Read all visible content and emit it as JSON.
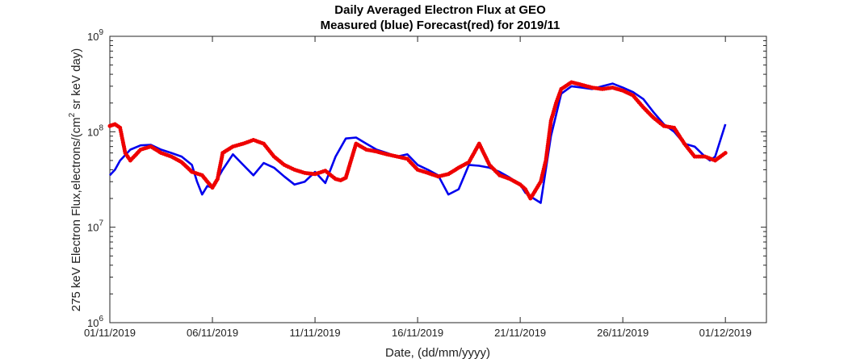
{
  "chart_data": {
    "type": "line",
    "title": "Daily Averaged Electron Flux at GEO",
    "subtitle": "Measured (blue) Forecast(red) for 2019/11",
    "xlabel": "Date, (dd/mm/yyyy)",
    "ylabel": {
      "main": "275 keV Electron Flux,electrons/(cm",
      "sup": "2",
      "rest": " sr keV day)"
    },
    "ylog": true,
    "ylim_exponents": [
      6,
      9
    ],
    "ytick_labels": [
      {
        "base": "10",
        "exp": "6"
      },
      {
        "base": "10",
        "exp": "7"
      },
      {
        "base": "10",
        "exp": "8"
      },
      {
        "base": "10",
        "exp": "9"
      }
    ],
    "xlim": [
      "2019-11-01",
      "2019-12-03"
    ],
    "xticks": [
      "2019-11-01",
      "2019-11-06",
      "2019-11-11",
      "2019-11-16",
      "2019-11-21",
      "2019-11-26",
      "2019-12-01"
    ],
    "xtick_labels": [
      "01/11/2019",
      "06/11/2019",
      "11/11/2019",
      "16/11/2019",
      "21/11/2019",
      "26/11/2019",
      "01/12/2019"
    ],
    "series": [
      {
        "name": "Measured",
        "color": "#0000ee",
        "style": "line",
        "x": [
          "2019-11-01T00:00",
          "2019-11-01T06:00",
          "2019-11-01T12:00",
          "2019-11-02T00:00",
          "2019-11-02T12:00",
          "2019-11-03T00:00",
          "2019-11-03T12:00",
          "2019-11-04T00:00",
          "2019-11-04T12:00",
          "2019-11-05T00:00",
          "2019-11-05T06:00",
          "2019-11-05T12:00",
          "2019-11-05T18:00",
          "2019-11-06T00:00",
          "2019-11-06T12:00",
          "2019-11-07T00:00",
          "2019-11-07T12:00",
          "2019-11-08T00:00",
          "2019-11-08T12:00",
          "2019-11-09T00:00",
          "2019-11-09T12:00",
          "2019-11-10T00:00",
          "2019-11-10T12:00",
          "2019-11-11T00:00",
          "2019-11-11T12:00",
          "2019-11-12T00:00",
          "2019-11-12T12:00",
          "2019-11-13T00:00",
          "2019-11-13T12:00",
          "2019-11-14T00:00",
          "2019-11-14T12:00",
          "2019-11-15T00:00",
          "2019-11-15T12:00",
          "2019-11-16T00:00",
          "2019-11-16T12:00",
          "2019-11-17T00:00",
          "2019-11-17T12:00",
          "2019-11-18T00:00",
          "2019-11-18T12:00",
          "2019-11-19T00:00",
          "2019-11-19T12:00",
          "2019-11-20T00:00",
          "2019-11-20T12:00",
          "2019-11-21T00:00",
          "2019-11-21T06:00",
          "2019-11-21T12:00",
          "2019-11-22T00:00",
          "2019-11-22T12:00",
          "2019-11-23T00:00",
          "2019-11-23T12:00",
          "2019-11-24T00:00",
          "2019-11-24T12:00",
          "2019-11-25T00:00",
          "2019-11-25T12:00",
          "2019-11-26T00:00",
          "2019-11-26T12:00",
          "2019-11-27T00:00",
          "2019-11-27T12:00",
          "2019-11-28T00:00",
          "2019-11-28T12:00",
          "2019-11-29T00:00",
          "2019-11-29T12:00",
          "2019-11-30T00:00",
          "2019-11-30T06:00",
          "2019-11-30T12:00",
          "2019-12-01T00:00"
        ],
        "y": [
          35000000.0,
          40000000.0,
          50000000.0,
          65000000.0,
          72000000.0,
          73000000.0,
          65000000.0,
          60000000.0,
          55000000.0,
          45000000.0,
          30000000.0,
          22000000.0,
          27000000.0,
          26000000.0,
          40000000.0,
          58000000.0,
          45000000.0,
          35000000.0,
          47000000.0,
          42000000.0,
          34000000.0,
          28000000.0,
          30000000.0,
          38000000.0,
          29000000.0,
          55000000.0,
          85000000.0,
          87000000.0,
          75000000.0,
          65000000.0,
          60000000.0,
          55000000.0,
          58000000.0,
          45000000.0,
          40000000.0,
          35000000.0,
          22000000.0,
          25000000.0,
          45000000.0,
          44000000.0,
          42000000.0,
          38000000.0,
          33000000.0,
          28000000.0,
          23000000.0,
          21000000.0,
          18000000.0,
          90000000.0,
          250000000.0,
          300000000.0,
          290000000.0,
          280000000.0,
          300000000.0,
          320000000.0,
          290000000.0,
          260000000.0,
          220000000.0,
          160000000.0,
          120000000.0,
          100000000.0,
          75000000.0,
          70000000.0,
          55000000.0,
          50000000.0,
          55000000.0,
          120000000.0
        ]
      },
      {
        "name": "Forecast",
        "color": "#ee0000",
        "style": "dots",
        "x": [
          "2019-11-01T00:00",
          "2019-11-01T06:00",
          "2019-11-01T12:00",
          "2019-11-01T18:00",
          "2019-11-02T00:00",
          "2019-11-02T12:00",
          "2019-11-03T00:00",
          "2019-11-03T12:00",
          "2019-11-04T00:00",
          "2019-11-04T12:00",
          "2019-11-05T00:00",
          "2019-11-05T12:00",
          "2019-11-05T18:00",
          "2019-11-06T00:00",
          "2019-11-06T06:00",
          "2019-11-06T12:00",
          "2019-11-07T00:00",
          "2019-11-07T12:00",
          "2019-11-08T00:00",
          "2019-11-08T12:00",
          "2019-11-09T00:00",
          "2019-11-09T12:00",
          "2019-11-10T00:00",
          "2019-11-10T12:00",
          "2019-11-11T00:00",
          "2019-11-11T12:00",
          "2019-11-12T00:00",
          "2019-11-12T06:00",
          "2019-11-12T12:00",
          "2019-11-13T00:00",
          "2019-11-13T12:00",
          "2019-11-14T00:00",
          "2019-11-14T12:00",
          "2019-11-15T00:00",
          "2019-11-15T12:00",
          "2019-11-16T00:00",
          "2019-11-16T12:00",
          "2019-11-17T00:00",
          "2019-11-17T12:00",
          "2019-11-18T00:00",
          "2019-11-18T12:00",
          "2019-11-19T00:00",
          "2019-11-19T12:00",
          "2019-11-20T00:00",
          "2019-11-20T12:00",
          "2019-11-21T00:00",
          "2019-11-21T06:00",
          "2019-11-21T12:00",
          "2019-11-22T00:00",
          "2019-11-22T06:00",
          "2019-11-22T12:00",
          "2019-11-22T18:00",
          "2019-11-23T00:00",
          "2019-11-23T12:00",
          "2019-11-24T00:00",
          "2019-11-24T12:00",
          "2019-11-25T00:00",
          "2019-11-25T12:00",
          "2019-11-26T00:00",
          "2019-11-26T12:00",
          "2019-11-27T00:00",
          "2019-11-27T12:00",
          "2019-11-28T00:00",
          "2019-11-28T12:00",
          "2019-11-29T00:00",
          "2019-11-29T12:00",
          "2019-11-30T00:00",
          "2019-11-30T12:00",
          "2019-12-01T00:00"
        ],
        "y": [
          115000000.0,
          120000000.0,
          110000000.0,
          60000000.0,
          50000000.0,
          65000000.0,
          70000000.0,
          60000000.0,
          55000000.0,
          48000000.0,
          38000000.0,
          35000000.0,
          30000000.0,
          26000000.0,
          32000000.0,
          60000000.0,
          70000000.0,
          75000000.0,
          82000000.0,
          75000000.0,
          55000000.0,
          45000000.0,
          40000000.0,
          37000000.0,
          36000000.0,
          39000000.0,
          32000000.0,
          31000000.0,
          33000000.0,
          75000000.0,
          65000000.0,
          62000000.0,
          58000000.0,
          55000000.0,
          52000000.0,
          40000000.0,
          37000000.0,
          34000000.0,
          36000000.0,
          42000000.0,
          48000000.0,
          75000000.0,
          45000000.0,
          35000000.0,
          32000000.0,
          28000000.0,
          25000000.0,
          20000000.0,
          30000000.0,
          50000000.0,
          130000000.0,
          200000000.0,
          280000000.0,
          330000000.0,
          310000000.0,
          290000000.0,
          280000000.0,
          290000000.0,
          270000000.0,
          240000000.0,
          180000000.0,
          140000000.0,
          115000000.0,
          110000000.0,
          75000000.0,
          55000000.0,
          55000000.0,
          50000000.0,
          60000000.0
        ]
      }
    ]
  }
}
